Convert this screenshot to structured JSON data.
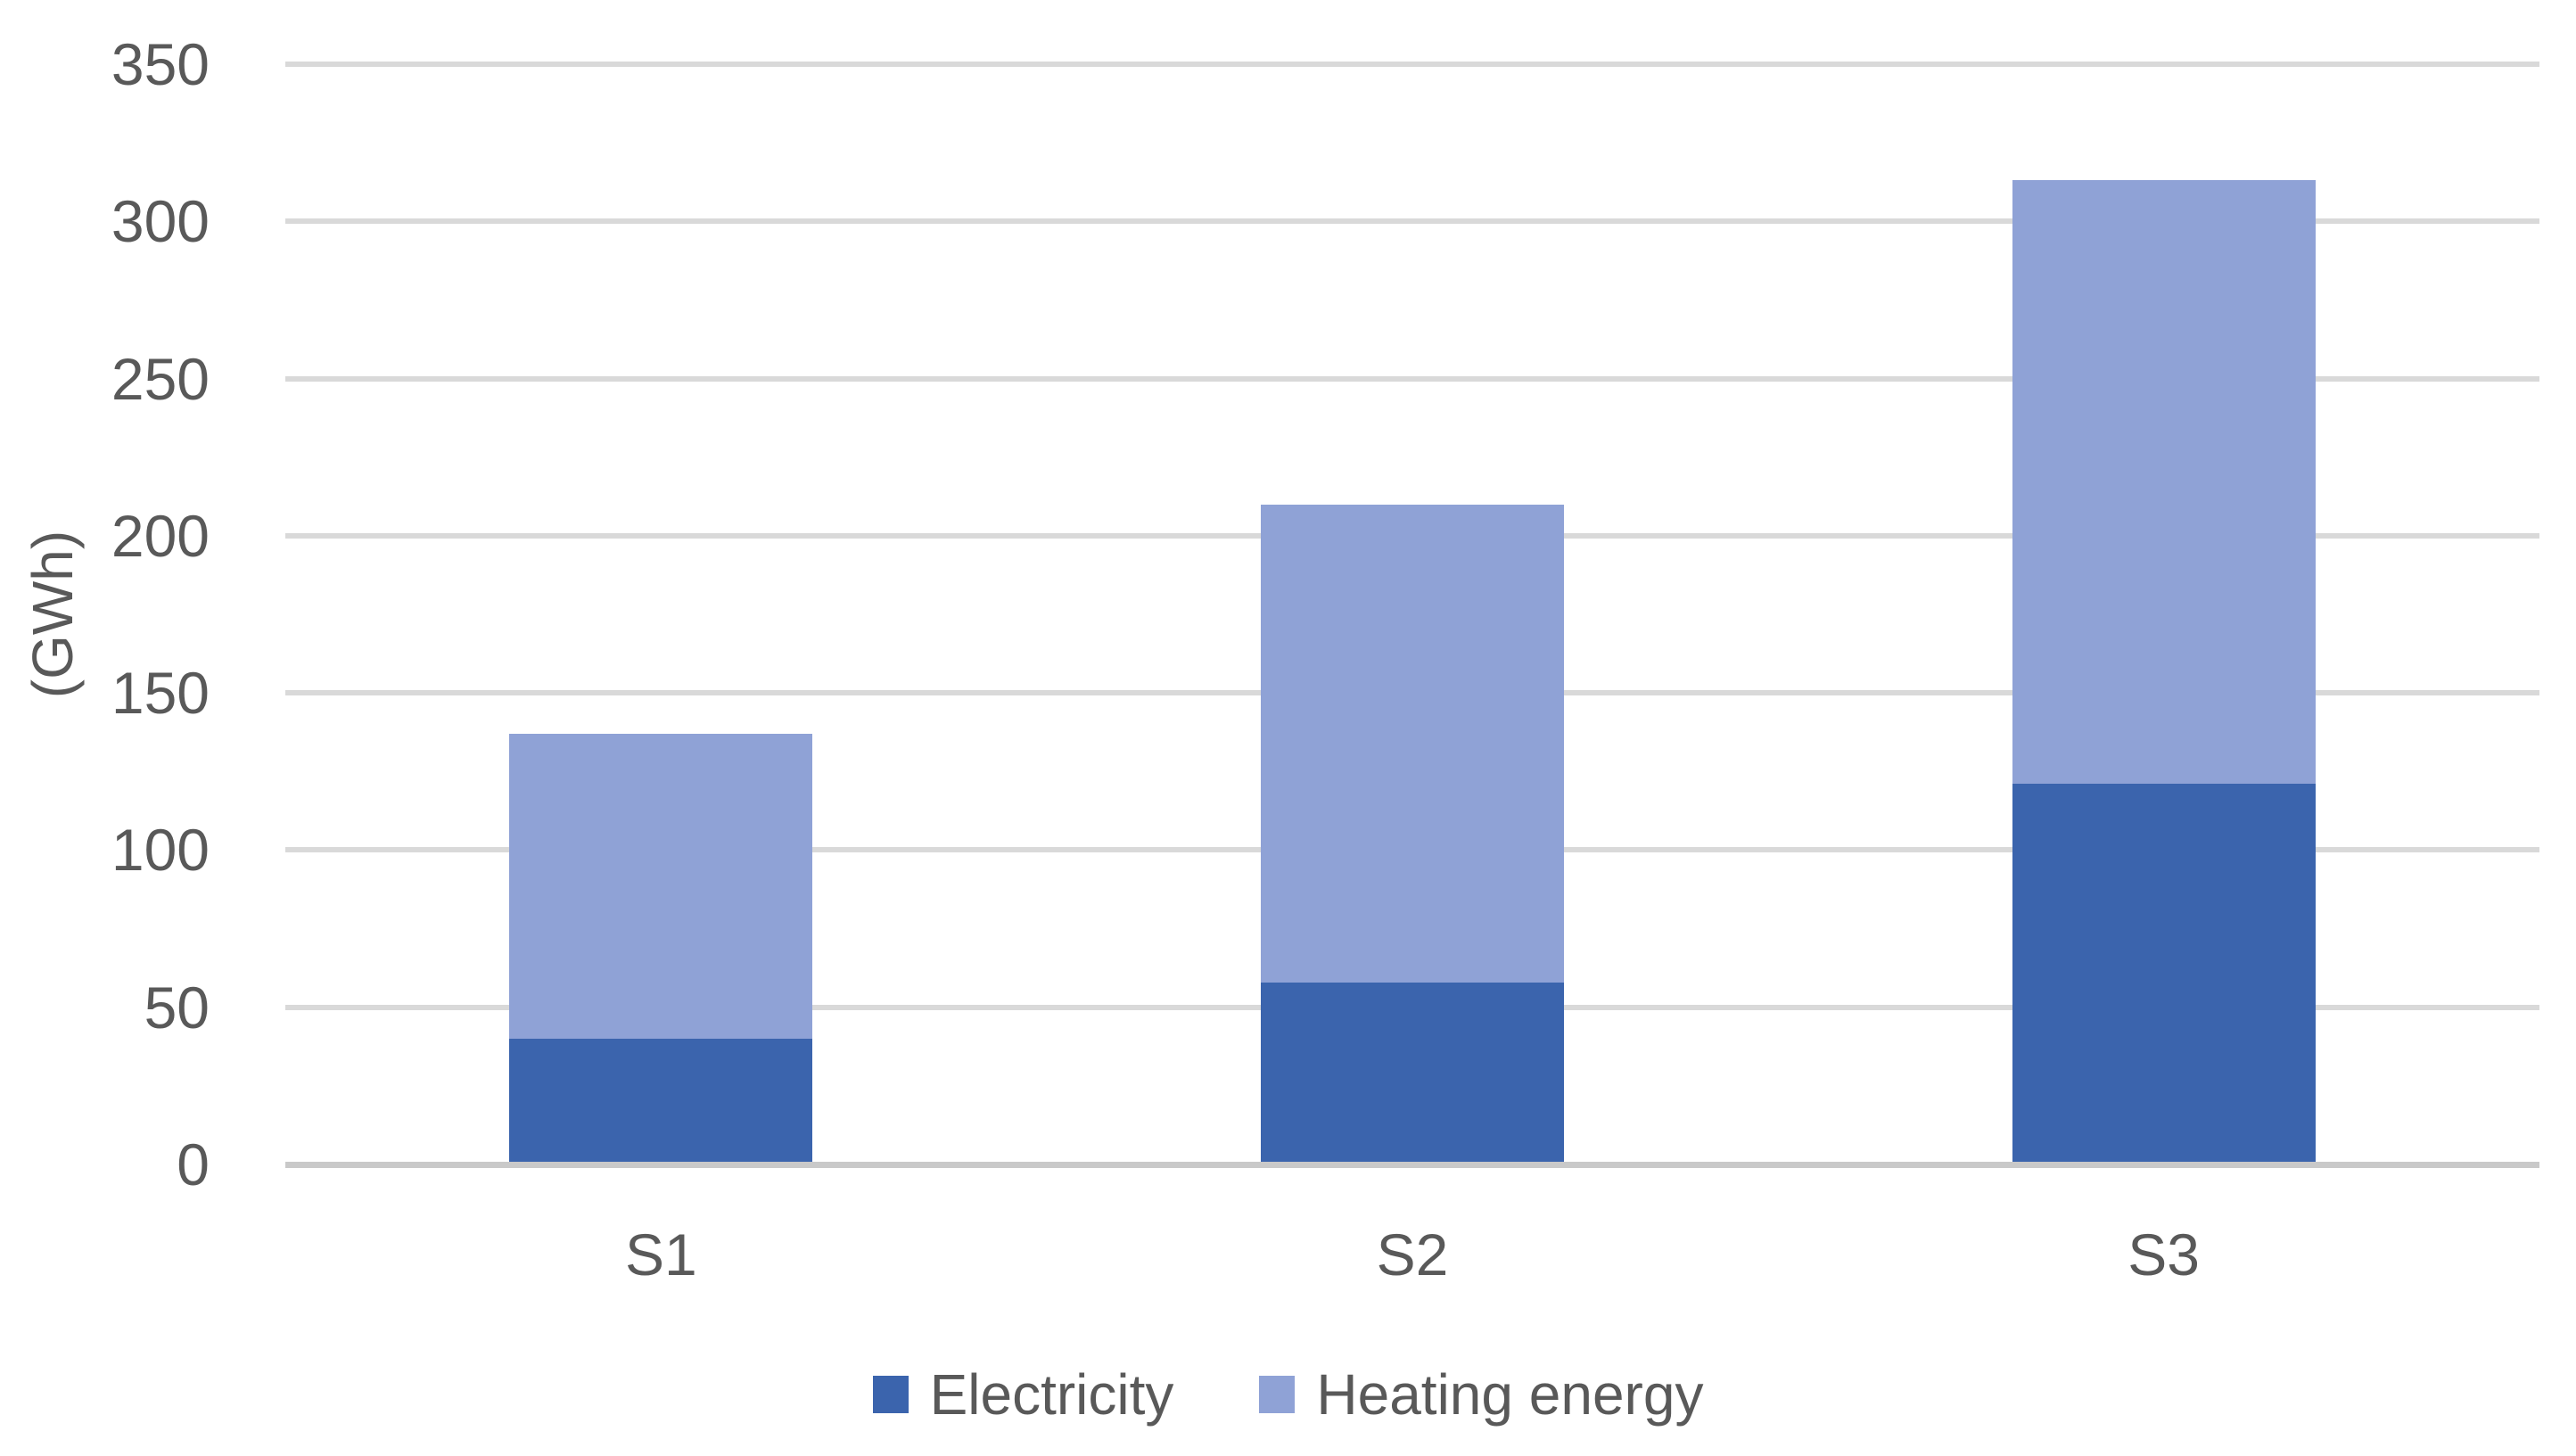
{
  "chart_data": {
    "type": "bar",
    "stacked": true,
    "categories": [
      "S1",
      "S2",
      "S3"
    ],
    "series": [
      {
        "name": "Electricity",
        "color": "#3B64AD",
        "values": [
          40,
          58,
          121
        ]
      },
      {
        "name": "Heating energy",
        "color": "#8FA2D6",
        "values": [
          97,
          152,
          192
        ]
      }
    ],
    "stack_totals": [
      137,
      210,
      313
    ],
    "ylabel": "(GWh)",
    "yticks": [
      0,
      50,
      100,
      150,
      200,
      250,
      300,
      350
    ],
    "ylim": [
      0,
      350
    ],
    "grid": true,
    "legend_position": "bottom",
    "colors": {
      "text": "#595959",
      "gridline": "#D9D9D9",
      "axis_line": "#C9C9C9",
      "background": "#FFFFFF"
    }
  }
}
